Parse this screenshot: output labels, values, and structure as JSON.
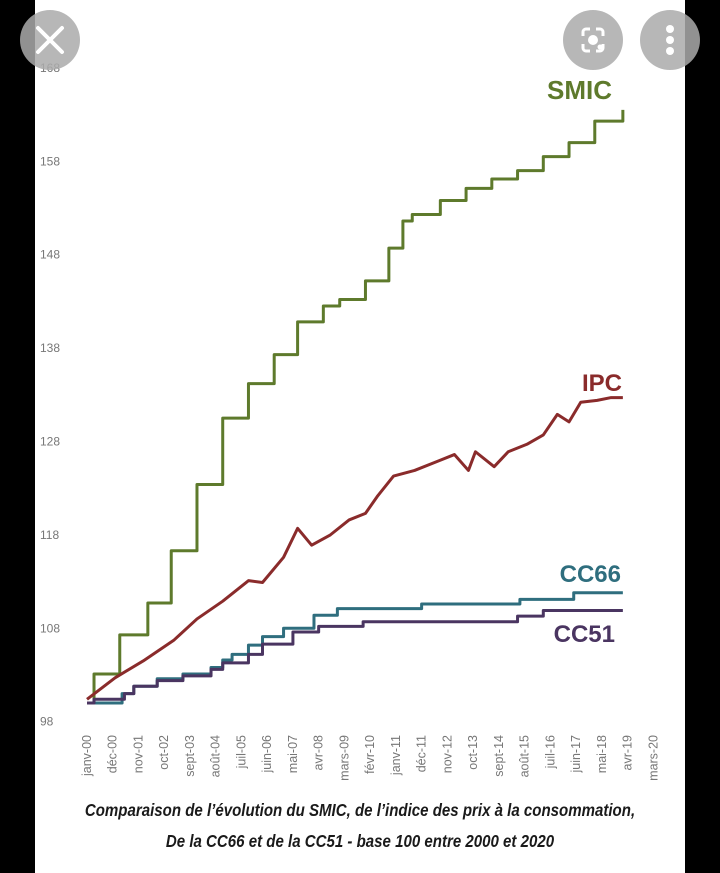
{
  "viewer": {
    "close_icon": "close-icon",
    "lens_icon": "lens-icon",
    "menu_icon": "more-vert-icon"
  },
  "chart_data": {
    "type": "line",
    "title": "Comparaison de l’évolution du SMIC, de l’indice des prix à la consommation,",
    "subtitle": "De la CC66 et de la CC51 - base 100 entre 2000 et 2020",
    "xlabel": "",
    "ylabel": "",
    "x_unit": "months since janv-00",
    "xlim": [
      0,
      229
    ],
    "ylim": [
      98,
      168
    ],
    "yticks": [
      168,
      158,
      148,
      138,
      128,
      118,
      108,
      98
    ],
    "xtick_step_months": 11,
    "xticks": [
      "janv-00",
      "déc-00",
      "nov-01",
      "oct-02",
      "sept-03",
      "août-04",
      "juil-05",
      "juin-06",
      "mai-07",
      "avr-08",
      "mars-09",
      "févr-10",
      "janv-11",
      "déc-11",
      "nov-12",
      "oct-13",
      "sept-14",
      "août-15",
      "juil-16",
      "juin-17",
      "mai-18",
      "avr-19",
      "mars-20"
    ],
    "grid": false,
    "series": [
      {
        "name": "SMIC",
        "color": "#5e7a2c",
        "step": true,
        "points": [
          [
            0,
            100
          ],
          [
            3,
            103.1
          ],
          [
            14,
            107.3
          ],
          [
            26,
            110.7
          ],
          [
            36,
            116.3
          ],
          [
            47,
            123.4
          ],
          [
            58,
            130.5
          ],
          [
            69,
            134.2
          ],
          [
            80,
            137.3
          ],
          [
            90,
            140.8
          ],
          [
            101,
            142.5
          ],
          [
            108,
            143.2
          ],
          [
            119,
            145.2
          ],
          [
            129,
            148.7
          ],
          [
            135,
            151.6
          ],
          [
            139,
            152.3
          ],
          [
            151,
            153.8
          ],
          [
            162,
            155.1
          ],
          [
            173,
            156.1
          ],
          [
            184,
            157
          ],
          [
            195,
            158.5
          ],
          [
            206,
            160
          ],
          [
            217,
            162.3
          ],
          [
            229,
            163.5
          ]
        ]
      },
      {
        "name": "IPC",
        "color": "#8a2b2b",
        "step": false,
        "points": [
          [
            0,
            100.4
          ],
          [
            12,
            102.7
          ],
          [
            24,
            104.5
          ],
          [
            37,
            106.7
          ],
          [
            47,
            109
          ],
          [
            58,
            110.9
          ],
          [
            69,
            113.1
          ],
          [
            75,
            112.9
          ],
          [
            84,
            115.6
          ],
          [
            90,
            118.7
          ],
          [
            96,
            116.9
          ],
          [
            104,
            118
          ],
          [
            112,
            119.6
          ],
          [
            119,
            120.3
          ],
          [
            124,
            122.1
          ],
          [
            131,
            124.3
          ],
          [
            140,
            124.9
          ],
          [
            150,
            125.9
          ],
          [
            157,
            126.6
          ],
          [
            163,
            124.9
          ],
          [
            166,
            126.9
          ],
          [
            174,
            125.3
          ],
          [
            180,
            126.9
          ],
          [
            188,
            127.7
          ],
          [
            195,
            128.7
          ],
          [
            201,
            130.9
          ],
          [
            206,
            130.1
          ],
          [
            211,
            132.2
          ],
          [
            218,
            132.4
          ],
          [
            224,
            132.7
          ],
          [
            229,
            132.7
          ]
        ]
      },
      {
        "name": "CC66",
        "color": "#2f6e7e",
        "step": true,
        "points": [
          [
            0,
            100
          ],
          [
            15,
            101
          ],
          [
            20,
            101.8
          ],
          [
            30,
            102.6
          ],
          [
            41,
            103.1
          ],
          [
            53,
            103.8
          ],
          [
            58,
            104.6
          ],
          [
            62,
            105.2
          ],
          [
            69,
            106.2
          ],
          [
            75,
            107.1
          ],
          [
            84,
            108
          ],
          [
            97,
            109.4
          ],
          [
            107,
            110.1
          ],
          [
            143,
            110.6
          ],
          [
            185,
            111.1
          ],
          [
            208,
            111.8
          ],
          [
            229,
            111.8
          ]
        ]
      },
      {
        "name": "CC51",
        "color": "#4a3561",
        "step": true,
        "points": [
          [
            0,
            100
          ],
          [
            3,
            100.4
          ],
          [
            16,
            101
          ],
          [
            20,
            101.8
          ],
          [
            30,
            102.4
          ],
          [
            41,
            102.9
          ],
          [
            53,
            103.6
          ],
          [
            58,
            104.3
          ],
          [
            69,
            105.2
          ],
          [
            75,
            106.3
          ],
          [
            88,
            107.6
          ],
          [
            99,
            108.2
          ],
          [
            118,
            108.7
          ],
          [
            184,
            109.3
          ],
          [
            195,
            109.9
          ],
          [
            229,
            109.9
          ]
        ]
      }
    ]
  }
}
